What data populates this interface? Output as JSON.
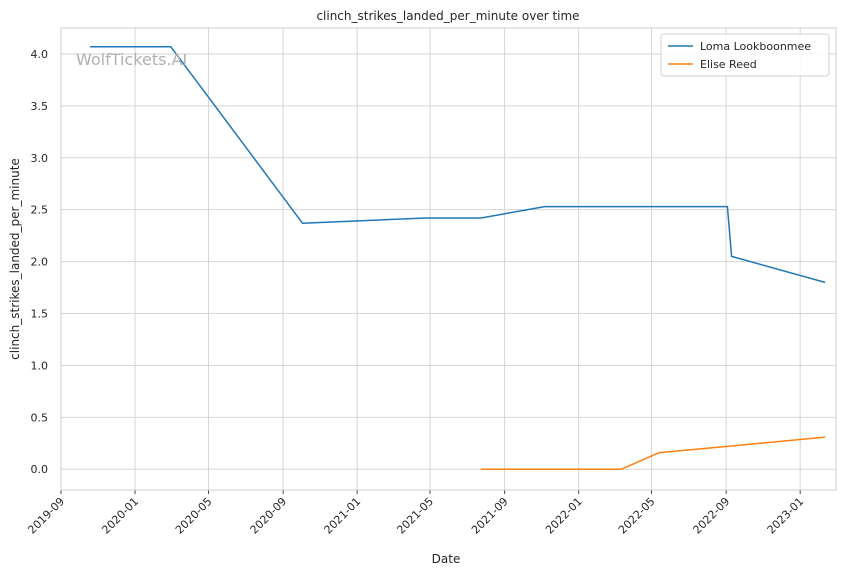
{
  "chart_data": {
    "type": "line",
    "title": "clinch_strikes_landed_per_minute over time",
    "xlabel": "Date",
    "ylabel": "clinch_strikes_landed_per_minute",
    "watermark": "WolfTickets.AI",
    "xlim": [
      "2019-09-01",
      "2023-03-01"
    ],
    "ylim": [
      -0.2,
      4.25
    ],
    "x_ticks": [
      "2019-09",
      "2020-01",
      "2020-05",
      "2020-09",
      "2021-01",
      "2021-05",
      "2021-09",
      "2022-01",
      "2022-05",
      "2022-09",
      "2023-01"
    ],
    "y_ticks": [
      "0.0",
      "0.5",
      "1.0",
      "1.5",
      "2.0",
      "2.5",
      "3.0",
      "3.5",
      "4.0"
    ],
    "y_tick_values": [
      0,
      0.5,
      1.0,
      1.5,
      2.0,
      2.5,
      3.0,
      3.5,
      4.0
    ],
    "grid": true,
    "legend_position": "top-right",
    "series": [
      {
        "name": "Loma Lookboonmee",
        "color": "#1f77b4",
        "points": [
          {
            "x": "2019-10-19",
            "y": 4.07
          },
          {
            "x": "2020-02-29",
            "y": 4.07
          },
          {
            "x": "2020-10-03",
            "y": 2.37
          },
          {
            "x": "2021-04-24",
            "y": 2.42
          },
          {
            "x": "2021-07-24",
            "y": 2.42
          },
          {
            "x": "2021-11-06",
            "y": 2.53
          },
          {
            "x": "2022-09-03",
            "y": 2.53
          },
          {
            "x": "2022-09-10",
            "y": 2.05
          },
          {
            "x": "2023-02-11",
            "y": 1.8
          }
        ]
      },
      {
        "name": "Elise Reed",
        "color": "#ff7f0e",
        "points": [
          {
            "x": "2021-07-24",
            "y": 0.0
          },
          {
            "x": "2022-03-12",
            "y": 0.0
          },
          {
            "x": "2022-05-14",
            "y": 0.16
          },
          {
            "x": "2022-09-03",
            "y": 0.22
          },
          {
            "x": "2023-02-11",
            "y": 0.31
          }
        ]
      }
    ]
  }
}
